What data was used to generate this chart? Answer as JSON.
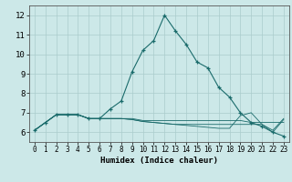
{
  "xlabel": "Humidex (Indice chaleur)",
  "xlim": [
    -0.5,
    23.5
  ],
  "ylim": [
    5.5,
    12.5
  ],
  "xticks": [
    0,
    1,
    2,
    3,
    4,
    5,
    6,
    7,
    8,
    9,
    10,
    11,
    12,
    13,
    14,
    15,
    16,
    17,
    18,
    19,
    20,
    21,
    22,
    23
  ],
  "yticks": [
    6,
    7,
    8,
    9,
    10,
    11,
    12
  ],
  "bg_color": "#cce8e8",
  "line_color": "#1a6b6b",
  "grid_color": "#aacccc",
  "series_main": [
    6.1,
    6.5,
    6.9,
    6.9,
    6.9,
    6.7,
    6.7,
    7.2,
    7.6,
    9.1,
    10.2,
    10.7,
    12.0,
    11.2,
    10.5,
    9.6,
    9.3,
    8.3,
    7.8,
    7.0,
    6.5,
    6.3,
    6.0,
    5.8
  ],
  "series_flat": [
    [
      6.1,
      6.5,
      6.9,
      6.9,
      6.9,
      6.7,
      6.7,
      6.7,
      6.7,
      6.7,
      6.6,
      6.6,
      6.6,
      6.6,
      6.6,
      6.6,
      6.6,
      6.6,
      6.6,
      6.6,
      6.5,
      6.5,
      6.5,
      6.5
    ],
    [
      6.1,
      6.5,
      6.9,
      6.9,
      6.9,
      6.7,
      6.7,
      6.7,
      6.7,
      6.65,
      6.55,
      6.5,
      6.45,
      6.4,
      6.4,
      6.4,
      6.4,
      6.4,
      6.4,
      6.4,
      6.4,
      6.4,
      6.1,
      6.7
    ],
    [
      6.1,
      6.5,
      6.9,
      6.9,
      6.9,
      6.7,
      6.7,
      6.7,
      6.7,
      6.65,
      6.55,
      6.5,
      6.45,
      6.4,
      6.35,
      6.3,
      6.25,
      6.2,
      6.2,
      6.85,
      7.0,
      6.4,
      6.0,
      6.65
    ]
  ]
}
